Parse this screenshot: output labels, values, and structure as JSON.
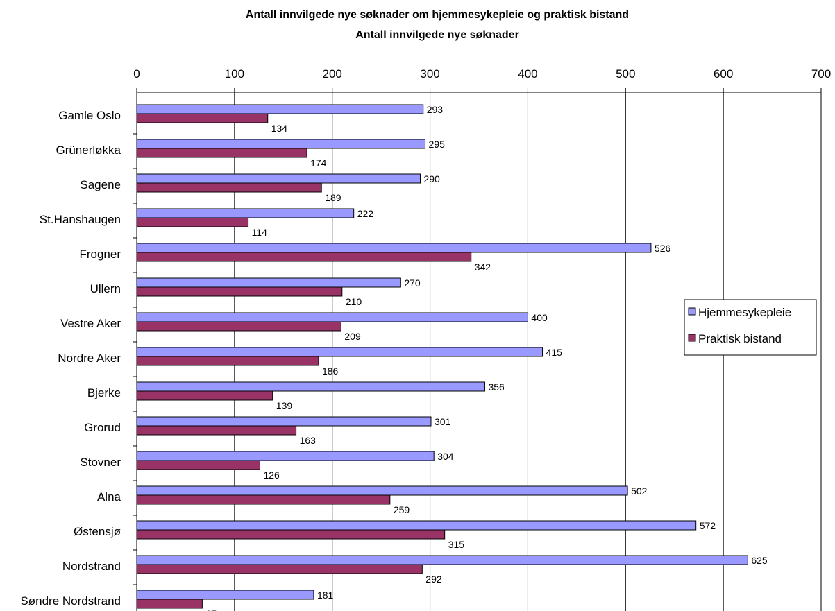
{
  "chart_data": {
    "type": "bar",
    "orientation": "horizontal",
    "title": "Antall innvilgede nye søknader om hjemmesykepleie og praktisk bistand",
    "subtitle": "Antall innvilgede nye søknader",
    "xlim": [
      0,
      700
    ],
    "x_ticks": [
      "0",
      "100",
      "200",
      "300",
      "400",
      "500",
      "600",
      "700"
    ],
    "x_tick_values": [
      0,
      100,
      200,
      300,
      400,
      500,
      600,
      700
    ],
    "x_axis_position": "top",
    "grid": true,
    "legend_position": "right",
    "categories": [
      "Gamle Oslo",
      "Grünerløkka",
      "Sagene",
      "St.Hanshaugen",
      "Frogner",
      "Ullern",
      "Vestre Aker",
      "Nordre Aker",
      "Bjerke",
      "Grorud",
      "Stovner",
      "Alna",
      "Østensjø",
      "Nordstrand",
      "Søndre Nordstrand"
    ],
    "series": [
      {
        "name": "Hjemmesykepleie",
        "color": "#9999FF",
        "values": [
          293,
          295,
          290,
          222,
          526,
          270,
          400,
          415,
          356,
          301,
          304,
          502,
          572,
          625,
          181
        ]
      },
      {
        "name": "Praktisk bistand",
        "color": "#993366",
        "values": [
          134,
          174,
          189,
          114,
          342,
          210,
          209,
          186,
          139,
          163,
          126,
          259,
          315,
          292,
          67
        ]
      }
    ]
  }
}
